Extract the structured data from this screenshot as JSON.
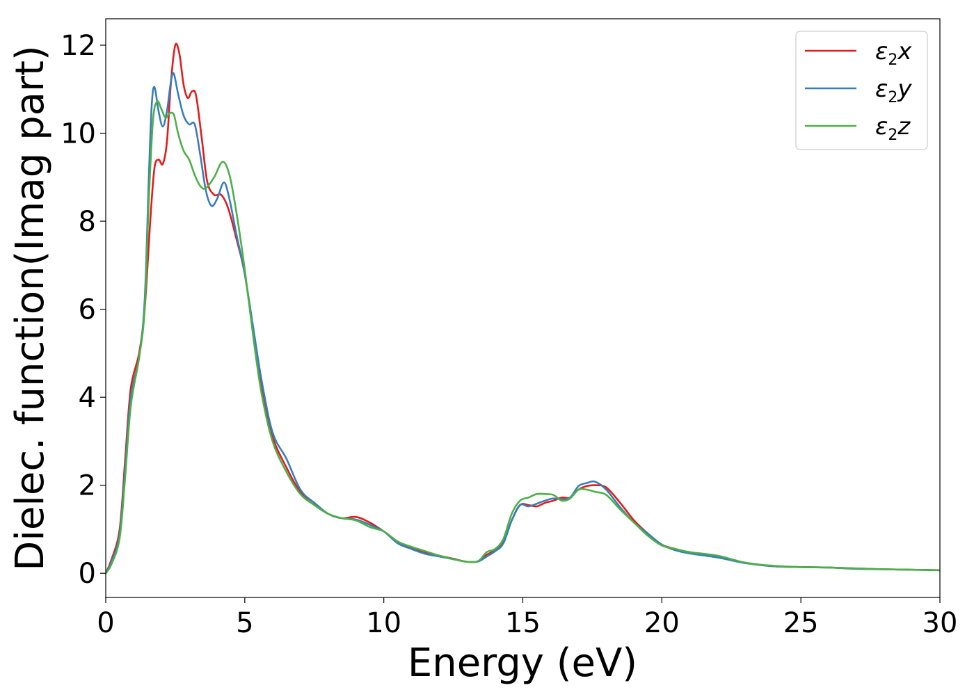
{
  "chart_data": {
    "type": "line",
    "title": "",
    "xlabel": "Energy (eV)",
    "ylabel": "Dielec. function(Imag part)",
    "xlim": [
      0,
      30
    ],
    "ylim": [
      -0.55,
      12.6
    ],
    "xticks": [
      0,
      5,
      10,
      15,
      20,
      25,
      30
    ],
    "xtick_labels": [
      "0",
      "5",
      "10",
      "15",
      "20",
      "25",
      "30"
    ],
    "yticks": [
      0,
      2,
      4,
      6,
      8,
      10,
      12
    ],
    "ytick_labels": [
      "0",
      "2",
      "4",
      "6",
      "8",
      "10",
      "12"
    ],
    "grid": false,
    "legend_position": "top-right",
    "series": [
      {
        "name": "ε₂x",
        "legend_base": "ε",
        "legend_sub": "2",
        "legend_var": "x",
        "color": "#e41a1c",
        "points": [
          [
            0,
            0
          ],
          [
            0.2,
            0.3
          ],
          [
            0.5,
            1.0
          ],
          [
            0.7,
            2.6
          ],
          [
            0.9,
            4.2
          ],
          [
            1.2,
            5.0
          ],
          [
            1.4,
            6.0
          ],
          [
            1.6,
            8.0
          ],
          [
            1.75,
            9.2
          ],
          [
            1.9,
            9.4
          ],
          [
            2.05,
            9.3
          ],
          [
            2.2,
            9.8
          ],
          [
            2.35,
            11.2
          ],
          [
            2.5,
            12.0
          ],
          [
            2.65,
            11.8
          ],
          [
            2.8,
            11.1
          ],
          [
            2.95,
            10.8
          ],
          [
            3.1,
            10.95
          ],
          [
            3.25,
            10.85
          ],
          [
            3.45,
            9.9
          ],
          [
            3.65,
            8.9
          ],
          [
            3.9,
            8.6
          ],
          [
            4.15,
            8.6
          ],
          [
            4.4,
            8.3
          ],
          [
            4.7,
            7.6
          ],
          [
            5.0,
            6.8
          ],
          [
            5.3,
            5.5
          ],
          [
            5.6,
            4.2
          ],
          [
            6.0,
            3.1
          ],
          [
            6.5,
            2.4
          ],
          [
            7.0,
            1.85
          ],
          [
            7.5,
            1.6
          ],
          [
            8.0,
            1.35
          ],
          [
            8.5,
            1.25
          ],
          [
            9.0,
            1.28
          ],
          [
            9.5,
            1.15
          ],
          [
            10.0,
            0.95
          ],
          [
            10.5,
            0.72
          ],
          [
            11.0,
            0.58
          ],
          [
            11.5,
            0.48
          ],
          [
            12.0,
            0.4
          ],
          [
            12.5,
            0.33
          ],
          [
            13.0,
            0.26
          ],
          [
            13.4,
            0.27
          ],
          [
            13.7,
            0.42
          ],
          [
            14.0,
            0.52
          ],
          [
            14.3,
            0.7
          ],
          [
            14.6,
            1.2
          ],
          [
            14.9,
            1.55
          ],
          [
            15.2,
            1.55
          ],
          [
            15.5,
            1.52
          ],
          [
            15.8,
            1.6
          ],
          [
            16.1,
            1.65
          ],
          [
            16.4,
            1.72
          ],
          [
            16.7,
            1.72
          ],
          [
            17.0,
            1.9
          ],
          [
            17.3,
            1.98
          ],
          [
            17.6,
            2.0
          ],
          [
            18.0,
            1.95
          ],
          [
            18.5,
            1.6
          ],
          [
            19.0,
            1.2
          ],
          [
            19.5,
            0.9
          ],
          [
            20.0,
            0.65
          ],
          [
            20.5,
            0.55
          ],
          [
            21.0,
            0.47
          ],
          [
            22.0,
            0.38
          ],
          [
            23.0,
            0.24
          ],
          [
            24.0,
            0.16
          ],
          [
            25.0,
            0.14
          ],
          [
            26.0,
            0.13
          ],
          [
            27.0,
            0.11
          ],
          [
            28.0,
            0.09
          ],
          [
            29.0,
            0.08
          ],
          [
            30.0,
            0.07
          ]
        ]
      },
      {
        "name": "ε₂y",
        "legend_base": "ε",
        "legend_sub": "2",
        "legend_var": "y",
        "color": "#377eb8",
        "points": [
          [
            0,
            0
          ],
          [
            0.2,
            0.25
          ],
          [
            0.5,
            0.9
          ],
          [
            0.7,
            2.4
          ],
          [
            0.9,
            4.0
          ],
          [
            1.2,
            4.9
          ],
          [
            1.4,
            6.2
          ],
          [
            1.55,
            9.0
          ],
          [
            1.65,
            10.6
          ],
          [
            1.75,
            11.05
          ],
          [
            1.9,
            10.5
          ],
          [
            2.05,
            10.15
          ],
          [
            2.2,
            10.5
          ],
          [
            2.35,
            11.2
          ],
          [
            2.45,
            11.35
          ],
          [
            2.6,
            10.9
          ],
          [
            2.8,
            10.4
          ],
          [
            3.0,
            10.2
          ],
          [
            3.2,
            10.2
          ],
          [
            3.4,
            9.5
          ],
          [
            3.6,
            8.7
          ],
          [
            3.8,
            8.35
          ],
          [
            4.0,
            8.5
          ],
          [
            4.25,
            8.88
          ],
          [
            4.45,
            8.5
          ],
          [
            4.7,
            7.7
          ],
          [
            5.0,
            6.8
          ],
          [
            5.3,
            5.6
          ],
          [
            5.6,
            4.4
          ],
          [
            6.0,
            3.2
          ],
          [
            6.5,
            2.6
          ],
          [
            7.0,
            1.9
          ],
          [
            7.5,
            1.6
          ],
          [
            8.0,
            1.35
          ],
          [
            8.5,
            1.25
          ],
          [
            9.0,
            1.22
          ],
          [
            9.5,
            1.1
          ],
          [
            10.0,
            0.95
          ],
          [
            10.5,
            0.68
          ],
          [
            11.0,
            0.55
          ],
          [
            11.5,
            0.44
          ],
          [
            12.0,
            0.38
          ],
          [
            12.5,
            0.32
          ],
          [
            13.0,
            0.26
          ],
          [
            13.4,
            0.27
          ],
          [
            13.7,
            0.38
          ],
          [
            14.0,
            0.5
          ],
          [
            14.3,
            0.68
          ],
          [
            14.6,
            1.2
          ],
          [
            14.9,
            1.55
          ],
          [
            15.2,
            1.52
          ],
          [
            15.5,
            1.58
          ],
          [
            15.8,
            1.65
          ],
          [
            16.1,
            1.7
          ],
          [
            16.4,
            1.68
          ],
          [
            16.7,
            1.72
          ],
          [
            17.0,
            1.98
          ],
          [
            17.3,
            2.05
          ],
          [
            17.6,
            2.08
          ],
          [
            18.0,
            1.9
          ],
          [
            18.5,
            1.5
          ],
          [
            19.0,
            1.15
          ],
          [
            19.5,
            0.9
          ],
          [
            20.0,
            0.65
          ],
          [
            20.5,
            0.52
          ],
          [
            21.0,
            0.45
          ],
          [
            22.0,
            0.36
          ],
          [
            23.0,
            0.23
          ],
          [
            24.0,
            0.16
          ],
          [
            25.0,
            0.14
          ],
          [
            26.0,
            0.13
          ],
          [
            27.0,
            0.1
          ],
          [
            28.0,
            0.09
          ],
          [
            29.0,
            0.08
          ],
          [
            30.0,
            0.07
          ]
        ]
      },
      {
        "name": "ε₂z",
        "legend_base": "ε",
        "legend_sub": "2",
        "legend_var": "z",
        "color": "#4daf4a",
        "points": [
          [
            0,
            0
          ],
          [
            0.2,
            0.2
          ],
          [
            0.5,
            0.8
          ],
          [
            0.7,
            2.2
          ],
          [
            0.9,
            3.8
          ],
          [
            1.2,
            4.9
          ],
          [
            1.4,
            6.0
          ],
          [
            1.55,
            8.5
          ],
          [
            1.7,
            10.3
          ],
          [
            1.85,
            10.72
          ],
          [
            2.0,
            10.55
          ],
          [
            2.15,
            10.35
          ],
          [
            2.3,
            10.45
          ],
          [
            2.45,
            10.42
          ],
          [
            2.6,
            10.0
          ],
          [
            2.8,
            9.6
          ],
          [
            3.0,
            9.4
          ],
          [
            3.2,
            9.05
          ],
          [
            3.4,
            8.8
          ],
          [
            3.6,
            8.75
          ],
          [
            3.9,
            9.0
          ],
          [
            4.2,
            9.35
          ],
          [
            4.45,
            9.05
          ],
          [
            4.7,
            8.2
          ],
          [
            5.0,
            6.9
          ],
          [
            5.3,
            5.4
          ],
          [
            5.6,
            4.1
          ],
          [
            6.0,
            3.0
          ],
          [
            6.5,
            2.3
          ],
          [
            7.0,
            1.8
          ],
          [
            7.5,
            1.55
          ],
          [
            8.0,
            1.35
          ],
          [
            8.5,
            1.25
          ],
          [
            9.0,
            1.2
          ],
          [
            9.5,
            1.05
          ],
          [
            10.0,
            0.95
          ],
          [
            10.5,
            0.72
          ],
          [
            11.0,
            0.6
          ],
          [
            11.5,
            0.5
          ],
          [
            12.0,
            0.4
          ],
          [
            12.5,
            0.32
          ],
          [
            13.0,
            0.26
          ],
          [
            13.4,
            0.28
          ],
          [
            13.7,
            0.48
          ],
          [
            14.0,
            0.55
          ],
          [
            14.3,
            0.78
          ],
          [
            14.6,
            1.35
          ],
          [
            14.9,
            1.65
          ],
          [
            15.2,
            1.72
          ],
          [
            15.5,
            1.8
          ],
          [
            15.8,
            1.8
          ],
          [
            16.1,
            1.78
          ],
          [
            16.4,
            1.65
          ],
          [
            16.7,
            1.7
          ],
          [
            17.0,
            1.9
          ],
          [
            17.3,
            1.9
          ],
          [
            17.6,
            1.85
          ],
          [
            18.0,
            1.78
          ],
          [
            18.5,
            1.45
          ],
          [
            19.0,
            1.15
          ],
          [
            19.5,
            0.85
          ],
          [
            20.0,
            0.63
          ],
          [
            20.5,
            0.55
          ],
          [
            21.0,
            0.48
          ],
          [
            22.0,
            0.4
          ],
          [
            23.0,
            0.24
          ],
          [
            24.0,
            0.17
          ],
          [
            25.0,
            0.14
          ],
          [
            26.0,
            0.13
          ],
          [
            27.0,
            0.11
          ],
          [
            28.0,
            0.09
          ],
          [
            29.0,
            0.08
          ],
          [
            30.0,
            0.07
          ]
        ]
      }
    ]
  }
}
